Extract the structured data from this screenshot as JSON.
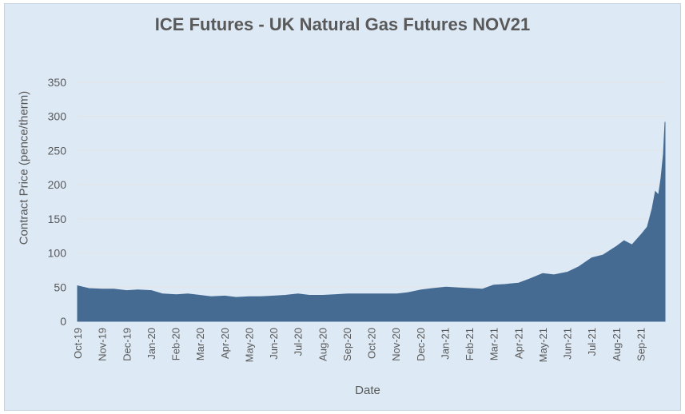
{
  "chart_data": {
    "type": "area",
    "title": "ICE Futures - UK Natural Gas Futures NOV21",
    "xlabel": "Date",
    "ylabel": "Contract Price (pence/therm)",
    "ylim": [
      0,
      350
    ],
    "yticks": [
      0,
      50,
      100,
      150,
      200,
      250,
      300,
      350
    ],
    "grid": "horizontal",
    "legend": "none",
    "fill_color": "#456b93",
    "x_tick_labels": [
      "Oct-19",
      "Nov-19",
      "Dec-19",
      "Jan-20",
      "Feb-20",
      "Mar-20",
      "Apr-20",
      "May-20",
      "Jun-20",
      "Jul-20",
      "Aug-20",
      "Sep-20",
      "Oct-20",
      "Nov-20",
      "Dec-20",
      "Jan-21",
      "Feb-21",
      "Mar-21",
      "Apr-21",
      "May-21",
      "Jun-21",
      "Jul-21",
      "Aug-21",
      "Sep-21"
    ],
    "series": [
      {
        "x": [
          "2019-10-01",
          "2019-10-15",
          "2019-11-01",
          "2019-11-15",
          "2019-12-01",
          "2019-12-15",
          "2020-01-01",
          "2020-01-15",
          "2020-02-01",
          "2020-02-15",
          "2020-03-01",
          "2020-03-15",
          "2020-04-01",
          "2020-04-15",
          "2020-05-01",
          "2020-05-15",
          "2020-06-01",
          "2020-06-15",
          "2020-07-01",
          "2020-07-15",
          "2020-08-01",
          "2020-08-15",
          "2020-09-01",
          "2020-09-15",
          "2020-10-01",
          "2020-10-15",
          "2020-11-01",
          "2020-11-15",
          "2020-12-01",
          "2020-12-15",
          "2021-01-01",
          "2021-01-15",
          "2021-02-01",
          "2021-02-15",
          "2021-03-01",
          "2021-03-15",
          "2021-04-01",
          "2021-04-15",
          "2021-05-01",
          "2021-05-15",
          "2021-06-01",
          "2021-06-15",
          "2021-07-01",
          "2021-07-15",
          "2021-08-01",
          "2021-08-10",
          "2021-08-20",
          "2021-09-01",
          "2021-09-08",
          "2021-09-14",
          "2021-09-18",
          "2021-09-22",
          "2021-09-25",
          "2021-09-28",
          "2021-09-30"
        ],
        "values": [
          52,
          48,
          47,
          47,
          45,
          46,
          45,
          40,
          39,
          40,
          38,
          36,
          37,
          35,
          36,
          36,
          37,
          38,
          40,
          38,
          38,
          39,
          40,
          40,
          40,
          40,
          40,
          42,
          46,
          48,
          50,
          49,
          48,
          47,
          53,
          54,
          56,
          62,
          70,
          68,
          72,
          80,
          93,
          97,
          110,
          118,
          112,
          128,
          138,
          165,
          190,
          185,
          210,
          245,
          292
        ]
      }
    ]
  }
}
